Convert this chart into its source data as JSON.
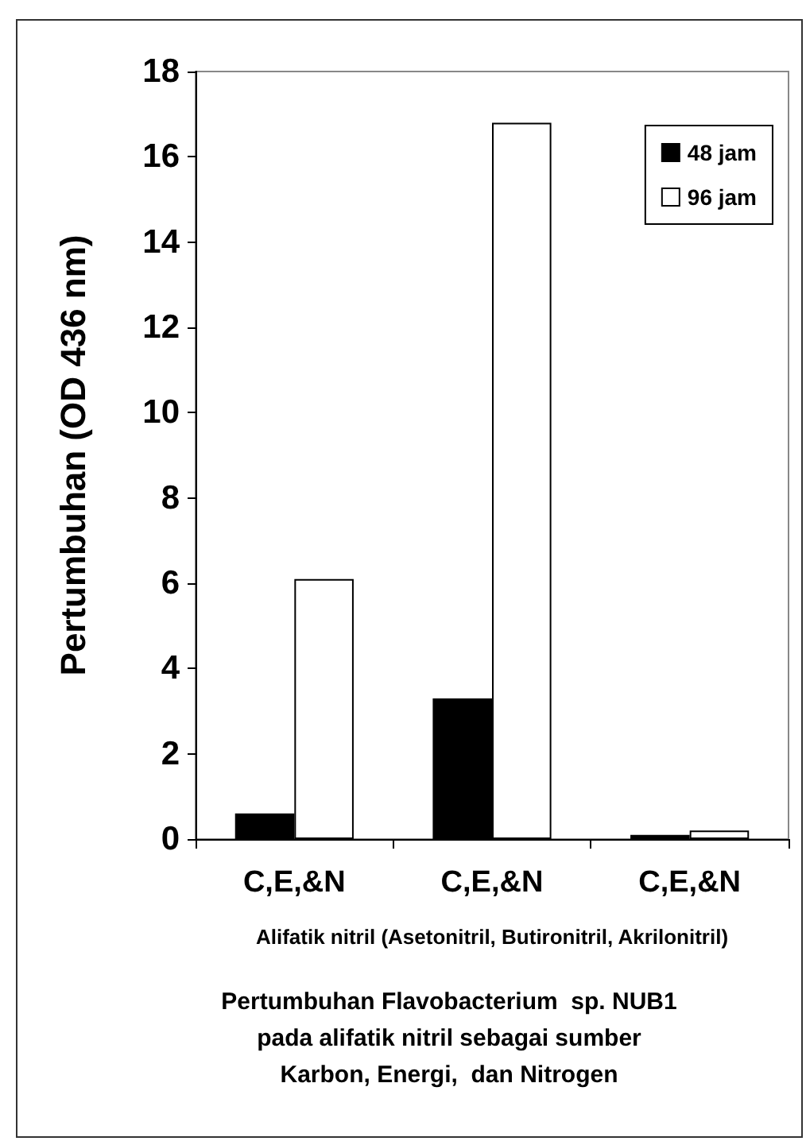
{
  "chart_data": {
    "type": "bar",
    "title": "Pertumbuhan Flavobacterium  sp. NUB1\npada alifatik nitril sebagai sumber\nKarbon, Energi,  dan Nitrogen",
    "xlabel": "Alifatik nitril (Asetonitril, Butironitril, Akrilonitril)",
    "ylabel": "Pertumbuhan (OD 436 nm)",
    "categories": [
      "C,E,&N",
      "C,E,&N",
      "C,E,&N"
    ],
    "series": [
      {
        "name": "48 jam",
        "color": "#000000",
        "values": [
          0.6,
          3.3,
          0.1
        ]
      },
      {
        "name": "96 jam",
        "color": "#ffffff",
        "values": [
          6.1,
          16.8,
          0.2
        ]
      }
    ],
    "ylim": [
      0,
      18
    ],
    "yticks": [
      0,
      2,
      4,
      6,
      8,
      10,
      12,
      14,
      16,
      18
    ],
    "grid": false,
    "legend": "top right"
  }
}
